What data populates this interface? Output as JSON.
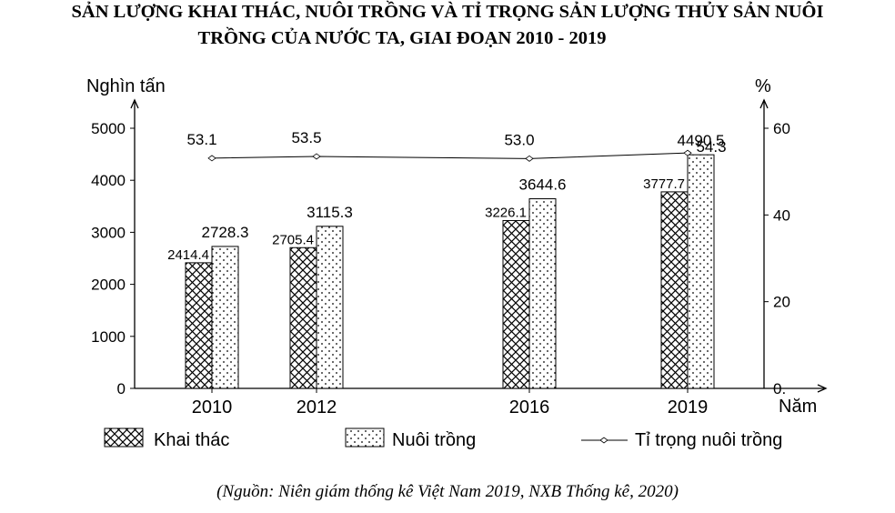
{
  "title_line1": "SẢN LƯỢNG KHAI THÁC, NUÔI TRỒNG VÀ TỈ TRỌNG SẢN LƯỢNG THỦY SẢN NUÔI",
  "title_line2": "TRỒNG CỦA NƯỚC TA, GIAI ĐOẠN 2010 - 2019",
  "source": "(Nguồn: Niên giám thống kê Việt Nam 2019, NXB Thống kê, 2020)",
  "chart_data": {
    "type": "bar",
    "categories": [
      "2010",
      "2012",
      "2016",
      "2019"
    ],
    "series": [
      {
        "name": "Khai thác",
        "kind": "bar",
        "pattern": "crosshatch",
        "values": [
          2414.4,
          2705.4,
          3226.1,
          3777.7
        ],
        "labels": [
          "2414.4",
          "2705.4",
          "3226.1",
          "3777.7"
        ]
      },
      {
        "name": "Nuôi trồng",
        "kind": "bar",
        "pattern": "dots",
        "values": [
          2728.3,
          3115.3,
          3644.6,
          4490.5
        ],
        "labels": [
          "2728.3",
          "3115.3",
          "3644.6",
          "4490.5"
        ]
      },
      {
        "name": "Tỉ trọng nuôi trồng",
        "kind": "line",
        "axis": "right",
        "values": [
          53.1,
          53.5,
          53.0,
          54.3
        ],
        "labels": [
          "53.1",
          "53.5",
          "53.0",
          "54.3"
        ]
      }
    ],
    "ylabel_left": "Nghìn tấn",
    "ylabel_right": "%",
    "xlabel": "Năm",
    "ylim_left": [
      0,
      5000
    ],
    "yticks_left": [
      "0",
      "1000",
      "2000",
      "3000",
      "4000",
      "5000"
    ],
    "ylim_right": [
      0,
      60
    ],
    "yticks_right": [
      "0.",
      "20",
      "40",
      "60"
    ],
    "grid": false,
    "legend_position": "bottom"
  }
}
